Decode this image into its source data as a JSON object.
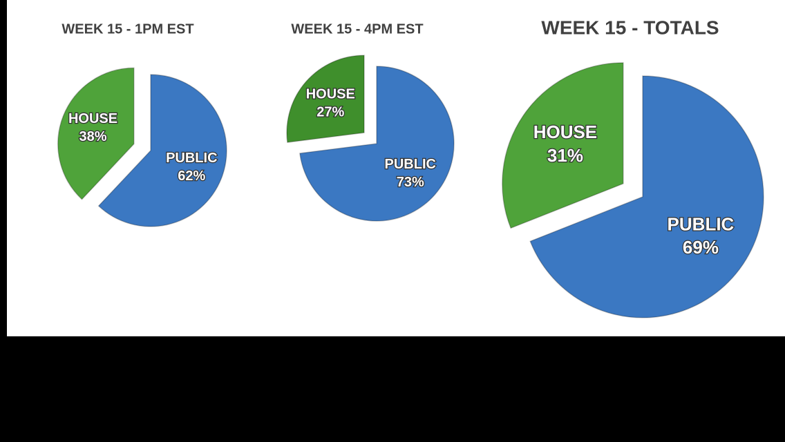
{
  "chart_data": [
    {
      "type": "pie",
      "title": "WEEK 15 - 1PM EST",
      "categories": [
        "HOUSE",
        "PUBLIC"
      ],
      "values": [
        38,
        62
      ],
      "value_labels": [
        "38%",
        "62%"
      ],
      "colors": [
        "#4fa33a",
        "#3b78c2"
      ]
    },
    {
      "type": "pie",
      "title": "WEEK 15 - 4PM EST",
      "categories": [
        "HOUSE",
        "PUBLIC"
      ],
      "values": [
        27,
        73
      ],
      "value_labels": [
        "27%",
        "73%"
      ],
      "colors": [
        "#3f8f2c",
        "#3b78c2"
      ]
    },
    {
      "type": "pie",
      "title": "WEEK 15 - TOTALS",
      "categories": [
        "HOUSE",
        "PUBLIC"
      ],
      "values": [
        31,
        69
      ],
      "value_labels": [
        "31%",
        "69%"
      ],
      "colors": [
        "#4fa33a",
        "#3b78c2"
      ]
    }
  ]
}
